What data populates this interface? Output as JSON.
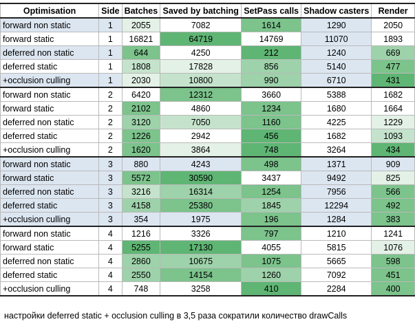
{
  "headers": [
    "Optimisation",
    "Side",
    "Batches",
    "Saved by batching",
    "SetPass calls",
    "Shadow casters",
    "Render"
  ],
  "colors": {
    "blue": "#dce6f1",
    "white": "#ffffff",
    "g1": "#e3f1e6",
    "g2": "#c5e3cc",
    "g3": "#9ed2aa",
    "g4": "#7cc38c",
    "g5": "#5fb574"
  },
  "rows": [
    {
      "name": "forward non static",
      "side": "1",
      "values": [
        "2055",
        "7082",
        "1614",
        "1290",
        "2050"
      ],
      "shades": [
        "g1",
        "white",
        "g4",
        "blue",
        "white"
      ],
      "nameShade": "blue",
      "sideShade": "blue"
    },
    {
      "name": "forward static",
      "side": "1",
      "values": [
        "16821",
        "64719",
        "14769",
        "11070",
        "1893"
      ],
      "shades": [
        "white",
        "g5",
        "white",
        "blue",
        "white"
      ],
      "nameShade": "white",
      "sideShade": "white"
    },
    {
      "name": "deferred non static",
      "side": "1",
      "values": [
        "644",
        "4250",
        "212",
        "1240",
        "669"
      ],
      "shades": [
        "g4",
        "white",
        "g5",
        "blue",
        "g3"
      ],
      "nameShade": "blue",
      "sideShade": "blue"
    },
    {
      "name": "deferred static",
      "side": "1",
      "values": [
        "1808",
        "17828",
        "856",
        "5140",
        "477"
      ],
      "shades": [
        "g2",
        "g1",
        "g3",
        "blue",
        "g4"
      ],
      "nameShade": "white",
      "sideShade": "white"
    },
    {
      "name": "+occlusion culling",
      "side": "1",
      "values": [
        "2030",
        "10800",
        "990",
        "6710",
        "431"
      ],
      "shades": [
        "g1",
        "g2",
        "g3",
        "blue",
        "g5"
      ],
      "nameShade": "blue",
      "sideShade": "blue"
    },
    {
      "name": "forward non static",
      "side": "2",
      "values": [
        "6420",
        "12312",
        "3660",
        "5388",
        "1682"
      ],
      "shades": [
        "white",
        "g4",
        "white",
        "white",
        "white"
      ],
      "nameShade": "white",
      "sideShade": "white"
    },
    {
      "name": "forward static",
      "side": "2",
      "values": [
        "2102",
        "4860",
        "1234",
        "1680",
        "1664"
      ],
      "shades": [
        "g4",
        "white",
        "g4",
        "white",
        "white"
      ],
      "nameShade": "white",
      "sideShade": "white"
    },
    {
      "name": "deferred non static",
      "side": "2",
      "values": [
        "3120",
        "7050",
        "1160",
        "4225",
        "1229"
      ],
      "shades": [
        "g3",
        "g2",
        "g4",
        "white",
        "g1"
      ],
      "nameShade": "white",
      "sideShade": "white"
    },
    {
      "name": "deferred static",
      "side": "2",
      "values": [
        "1226",
        "2942",
        "456",
        "1682",
        "1093"
      ],
      "shades": [
        "g4",
        "white",
        "g5",
        "white",
        "g2"
      ],
      "nameShade": "white",
      "sideShade": "white"
    },
    {
      "name": "+occlusion culling",
      "side": "2",
      "values": [
        "1620",
        "3864",
        "748",
        "3264",
        "434"
      ],
      "shades": [
        "g4",
        "g1",
        "g5",
        "white",
        "g5"
      ],
      "nameShade": "white",
      "sideShade": "white"
    },
    {
      "name": "forward non static",
      "side": "3",
      "values": [
        "880",
        "4243",
        "498",
        "1371",
        "909"
      ],
      "shades": [
        "blue",
        "blue",
        "g4",
        "blue",
        "blue"
      ],
      "nameShade": "blue",
      "sideShade": "blue"
    },
    {
      "name": "forward static",
      "side": "3",
      "values": [
        "5572",
        "30590",
        "3437",
        "9492",
        "825"
      ],
      "shades": [
        "g4",
        "g5",
        "white",
        "blue",
        "g1"
      ],
      "nameShade": "blue",
      "sideShade": "blue"
    },
    {
      "name": "deferred non static",
      "side": "3",
      "values": [
        "3216",
        "16314",
        "1254",
        "7956",
        "566"
      ],
      "shades": [
        "g2",
        "g3",
        "g4",
        "blue",
        "g4"
      ],
      "nameShade": "blue",
      "sideShade": "blue"
    },
    {
      "name": "deferred static",
      "side": "3",
      "values": [
        "4158",
        "25380",
        "1845",
        "12294",
        "492"
      ],
      "shades": [
        "g3",
        "g4",
        "g3",
        "blue",
        "g4"
      ],
      "nameShade": "blue",
      "sideShade": "blue"
    },
    {
      "name": "+occlusion culling",
      "side": "3",
      "values": [
        "354",
        "1975",
        "196",
        "1284",
        "383"
      ],
      "shades": [
        "blue",
        "blue",
        "g4",
        "blue",
        "g4"
      ],
      "nameShade": "blue",
      "sideShade": "blue"
    },
    {
      "name": "forward non static",
      "side": "4",
      "values": [
        "1216",
        "3326",
        "797",
        "1210",
        "1241"
      ],
      "shades": [
        "white",
        "white",
        "g4",
        "white",
        "white"
      ],
      "nameShade": "white",
      "sideShade": "white"
    },
    {
      "name": "forward static",
      "side": "4",
      "values": [
        "5255",
        "17130",
        "4055",
        "5815",
        "1076"
      ],
      "shades": [
        "g5",
        "g5",
        "white",
        "white",
        "g1"
      ],
      "nameShade": "white",
      "sideShade": "white"
    },
    {
      "name": "deferred non static",
      "side": "4",
      "values": [
        "2860",
        "10675",
        "1075",
        "5665",
        "598"
      ],
      "shades": [
        "g3",
        "g3",
        "g4",
        "white",
        "g4"
      ],
      "nameShade": "white",
      "sideShade": "white"
    },
    {
      "name": "deferred static",
      "side": "4",
      "values": [
        "2550",
        "14154",
        "1260",
        "7092",
        "451"
      ],
      "shades": [
        "g3",
        "g4",
        "g3",
        "white",
        "g4"
      ],
      "nameShade": "white",
      "sideShade": "white"
    },
    {
      "name": "+occlusion culling",
      "side": "4",
      "values": [
        "748",
        "3258",
        "410",
        "2284",
        "400"
      ],
      "shades": [
        "white",
        "white",
        "g5",
        "white",
        "g4"
      ],
      "nameShade": "white",
      "sideShade": "white"
    }
  ],
  "note": "настройки deferred static + occlusion culling в 3,5 раза сократили количество drawCalls"
}
